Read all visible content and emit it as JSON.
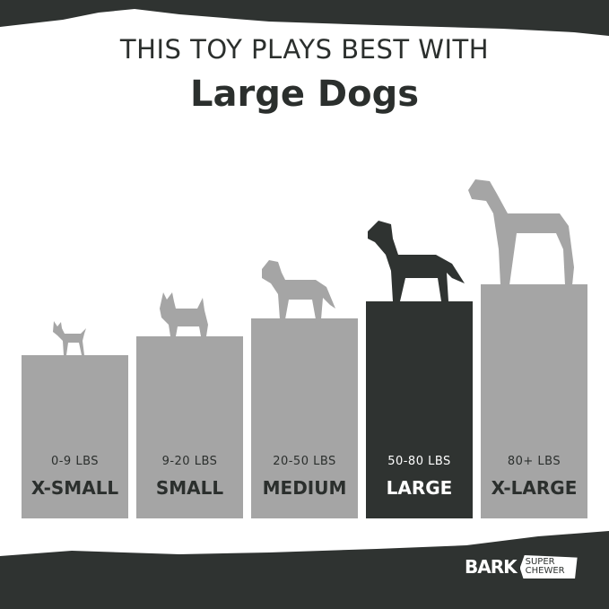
{
  "header": {
    "line1": "THIS TOY PLAYS BEST WITH",
    "line2": "Large Dogs"
  },
  "sizes": [
    {
      "weight": "0-9 LBS",
      "label": "X-SMALL",
      "active": false
    },
    {
      "weight": "9-20 LBS",
      "label": "SMALL",
      "active": false
    },
    {
      "weight": "20-50 LBS",
      "label": "MEDIUM",
      "active": false
    },
    {
      "weight": "50-80 LBS",
      "label": "LARGE",
      "active": true
    },
    {
      "weight": "80+ LBS",
      "label": "X-LARGE",
      "active": false
    }
  ],
  "logo": {
    "brand": "BARK",
    "sub1": "SUPER",
    "sub2": "CHEWER"
  },
  "colors": {
    "dark": "#2f3331",
    "bar": "#a5a5a5",
    "active": "#2f3331"
  }
}
